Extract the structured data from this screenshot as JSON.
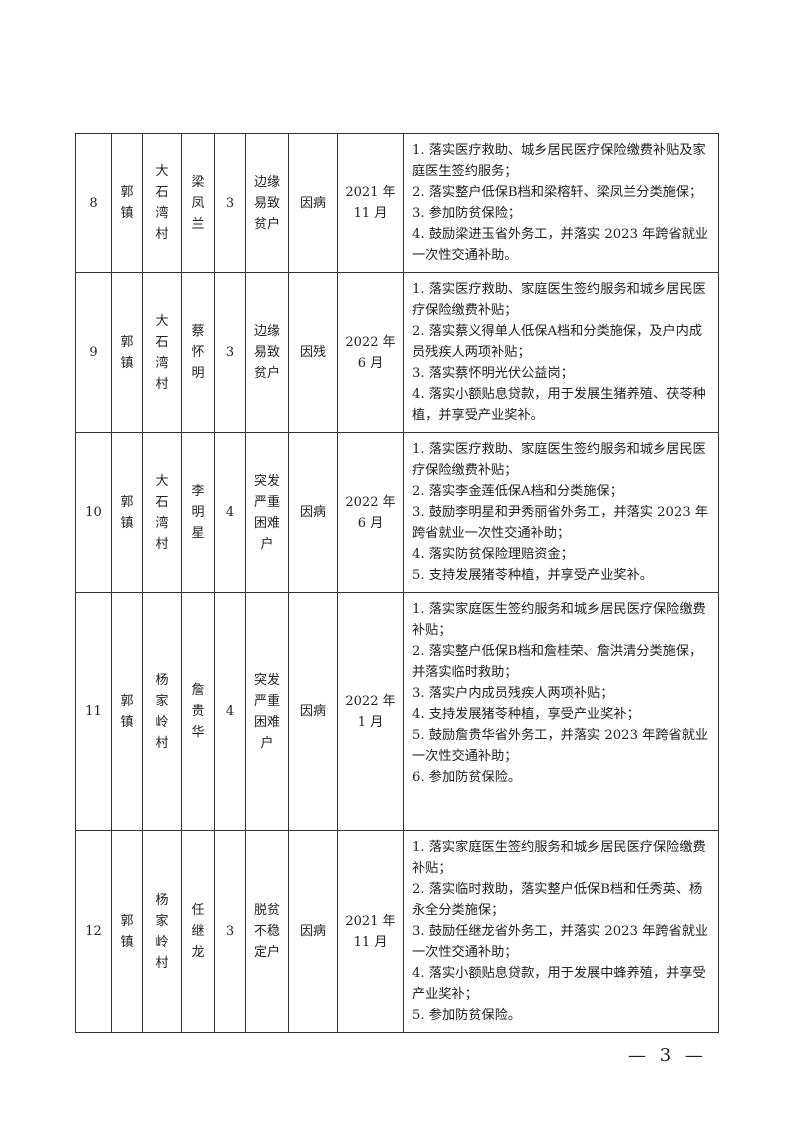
{
  "rows": [
    {
      "no": "8",
      "town": "郭镇",
      "village": "大石湾村",
      "name": "梁凤兰",
      "count": "3",
      "type": "边缘易致贫户",
      "reason": "因病",
      "date": "2021 年 11 月",
      "measures": [
        "1. 落实医疗救助、城乡居民医疗保险缴费补贴及家庭医生签约服务；",
        "2. 落实整户低保B档和梁榕轩、梁凤兰分类施保；",
        "3. 参加防贫保险；",
        "4. 鼓励梁进玉省外务工，并落实 2023 年跨省就业一次性交通补助。"
      ]
    },
    {
      "no": "9",
      "town": "郭镇",
      "village": "大石湾村",
      "name": "蔡怀明",
      "count": "3",
      "type": "边缘易致贫户",
      "reason": "因残",
      "date": "2022 年 6 月",
      "measures": [
        "1. 落实医疗救助、家庭医生签约服务和城乡居民医疗保险缴费补贴；",
        "2. 落实蔡义得单人低保A档和分类施保，及户内成员残疾人两项补贴；",
        "3. 落实蔡怀明光伏公益岗；",
        "4. 落实小额贴息贷款，用于发展生猪养殖、茯苓种植，并享受产业奖补。"
      ]
    },
    {
      "no": "10",
      "town": "郭镇",
      "village": "大石湾村",
      "name": "李明星",
      "count": "4",
      "type": "突发严重困难户",
      "reason": "因病",
      "date": "2022 年 6 月",
      "measures": [
        "1. 落实医疗救助、家庭医生签约服务和城乡居民医疗保险缴费补贴；",
        "2. 落实李金莲低保A档和分类施保；",
        "3. 鼓励李明星和尹秀丽省外务工，并落实 2023 年跨省就业一次性交通补助；",
        "4. 落实防贫保险理赔资金；",
        "5. 支持发展猪苓种植，并享受产业奖补。"
      ]
    },
    {
      "no": "11",
      "town": "郭镇",
      "village": "杨家岭村",
      "name": "詹贵华",
      "count": "4",
      "type": "突发严重困难户",
      "reason": "因病",
      "date": "2022 年 1 月",
      "measures": [
        "1. 落实家庭医生签约服务和城乡居民医疗保险缴费补贴；",
        "2. 落实整户低保B档和詹桂荣、詹洪清分类施保，并落实临时救助；",
        "3. 落实户内成员残疾人两项补贴；",
        "4. 支持发展猪苓种植，享受产业奖补；",
        "5. 鼓励詹贵华省外务工，并落实 2023 年跨省就业一次性交通补助；",
        "6. 参加防贫保险。"
      ]
    },
    {
      "no": "12",
      "town": "郭镇",
      "village": "杨家岭村",
      "name": "任继龙",
      "count": "3",
      "type": "脱贫不稳定户",
      "reason": "因病",
      "date": "2021 年 11 月",
      "measures": [
        "1. 落实家庭医生签约服务和城乡居民医疗保险缴费补贴；",
        "2. 落实临时救助，落实整户低保B档和任秀英、杨永全分类施保；",
        "3. 鼓励任继龙省外务工，并落实 2023 年跨省就业一次性交通补助；",
        "4. 落实小额贴息贷款，用于发展中蜂养殖，并享受产业奖补；",
        "5. 参加防贫保险。"
      ]
    }
  ],
  "page_number": "— 3 —"
}
